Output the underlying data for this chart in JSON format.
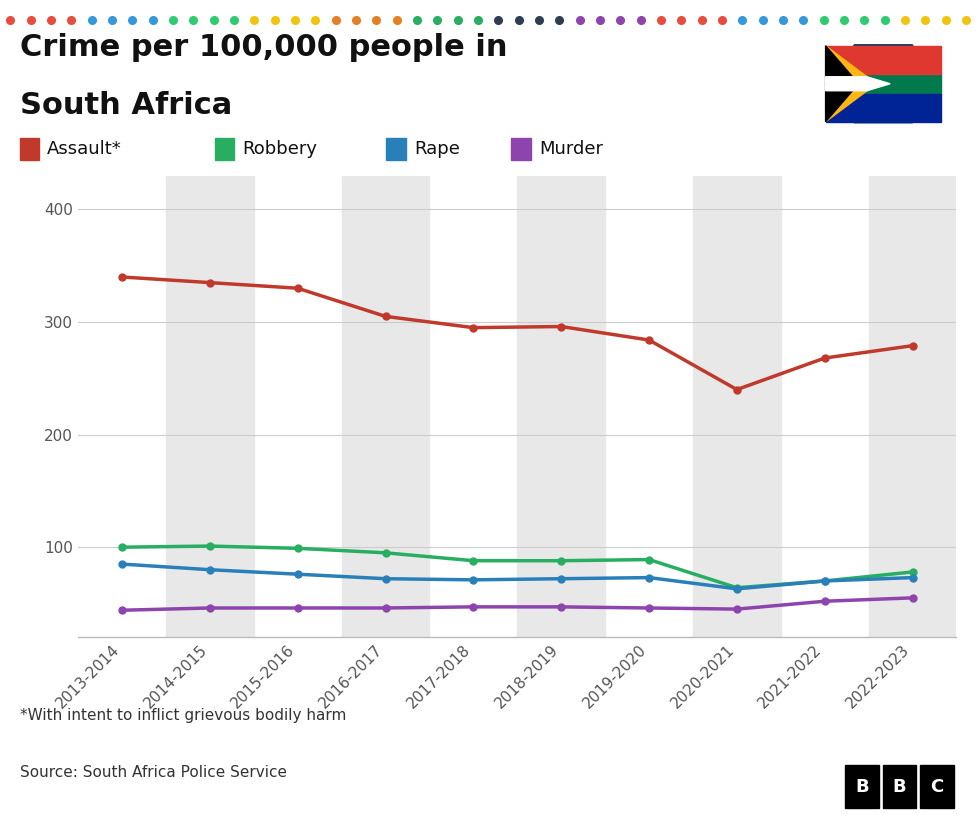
{
  "title_line1": "Crime per 100,000 people in",
  "title_line2": "South Africa",
  "years": [
    "2013-2014",
    "2014-2015",
    "2015-2016",
    "2016-2017",
    "2017-2018",
    "2018-2019",
    "2019-2020",
    "2020-2021",
    "2021-2022",
    "2022-2023"
  ],
  "assault": [
    340,
    335,
    330,
    305,
    295,
    296,
    284,
    240,
    268,
    279
  ],
  "robbery": [
    100,
    101,
    99,
    95,
    88,
    88,
    89,
    64,
    70,
    78
  ],
  "rape": [
    85,
    80,
    76,
    72,
    71,
    72,
    73,
    63,
    70,
    73
  ],
  "murder": [
    44,
    46,
    46,
    46,
    47,
    47,
    46,
    45,
    52,
    55
  ],
  "assault_color": "#c0392b",
  "robbery_color": "#27ae60",
  "rape_color": "#2980b9",
  "murder_color": "#8e44ad",
  "bg_color": "#ffffff",
  "stripe_color": "#e8e8e8",
  "yticks": [
    100,
    200,
    300,
    400
  ],
  "ylim": [
    20,
    430
  ],
  "footnote": "*With intent to inflict grievous bodily harm",
  "source": "Source: South Africa Police Service",
  "dot_colors": [
    "#e74c3c",
    "#e74c3c",
    "#e74c3c",
    "#e74c3c",
    "#3498db",
    "#3498db",
    "#3498db",
    "#3498db",
    "#2ecc71",
    "#2ecc71",
    "#2ecc71",
    "#2ecc71",
    "#f1c40f",
    "#f1c40f",
    "#f1c40f",
    "#f1c40f",
    "#e67e22",
    "#e67e22",
    "#e67e22",
    "#e67e22",
    "#27ae60",
    "#27ae60",
    "#27ae60",
    "#27ae60",
    "#2c3e50",
    "#2c3e50",
    "#2c3e50",
    "#2c3e50",
    "#8e44ad",
    "#8e44ad",
    "#8e44ad",
    "#8e44ad",
    "#e74c3c",
    "#e74c3c",
    "#e74c3c",
    "#e74c3c",
    "#3498db",
    "#3498db",
    "#3498db",
    "#3498db",
    "#2ecc71",
    "#2ecc71",
    "#2ecc71",
    "#2ecc71",
    "#f1c40f",
    "#f1c40f",
    "#f1c40f",
    "#f1c40f"
  ]
}
